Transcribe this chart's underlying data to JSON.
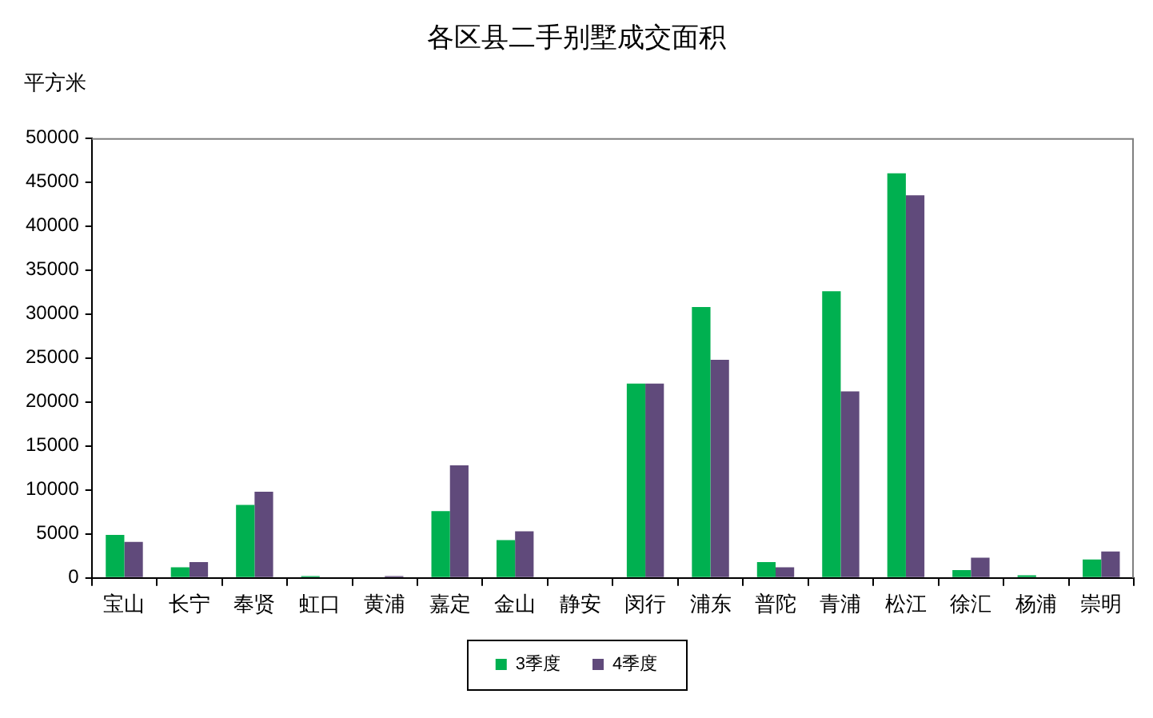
{
  "chart_data": {
    "type": "bar",
    "title": "各区县二手别墅成交面积",
    "ylabel": "平方米",
    "categories": [
      "宝山",
      "长宁",
      "奉贤",
      "虹口",
      "黄浦",
      "嘉定",
      "金山",
      "静安",
      "闵行",
      "浦东",
      "普陀",
      "青浦",
      "松江",
      "徐汇",
      "杨浦",
      "崇明"
    ],
    "series": [
      {
        "name": "3季度",
        "color": "#00b050",
        "values": [
          4900,
          1200,
          8300,
          200,
          0,
          7600,
          4300,
          0,
          22100,
          30800,
          1800,
          32600,
          46000,
          900,
          300,
          2100
        ]
      },
      {
        "name": "4季度",
        "color": "#604a7b",
        "values": [
          4100,
          1800,
          9800,
          0,
          200,
          12800,
          5300,
          0,
          22100,
          24800,
          1200,
          21200,
          43500,
          2300,
          0,
          3000
        ]
      }
    ],
    "ylim": [
      0,
      50000
    ],
    "yticks": [
      0,
      5000,
      10000,
      15000,
      20000,
      25000,
      30000,
      35000,
      40000,
      45000,
      50000
    ],
    "grid": false,
    "legend": "bottom"
  }
}
